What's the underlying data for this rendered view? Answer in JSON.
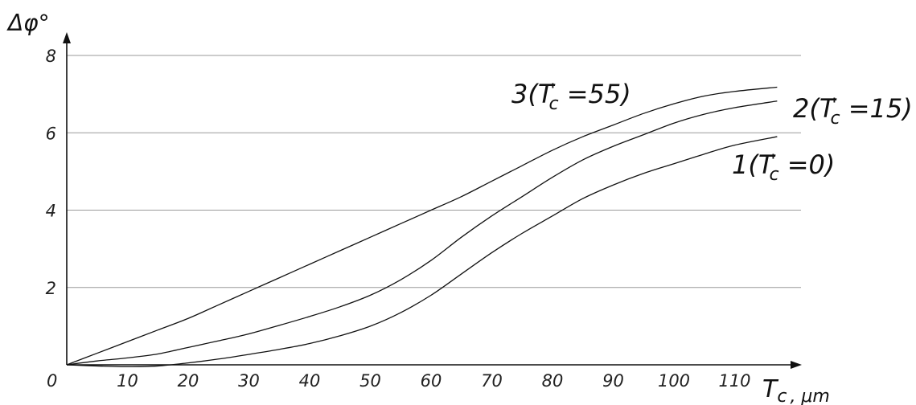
{
  "chart_data": {
    "type": "line",
    "title": "",
    "ylabel": "Δφ°",
    "xlabel": "T_c , μm",
    "xlabel_main": "T",
    "xlabel_sub": "c",
    "xlabel_unit": ", μm",
    "xlim": [
      0,
      120
    ],
    "ylim": [
      0,
      8
    ],
    "x_ticks": [
      0,
      10,
      20,
      30,
      40,
      50,
      60,
      70,
      80,
      90,
      100,
      110
    ],
    "y_ticks": [
      2,
      4,
      6,
      8
    ],
    "origin_label": "0",
    "grid": "horizontal",
    "series": [
      {
        "name": "1(T'c =0)",
        "label_parts": [
          "1(T",
          "'",
          "c",
          " =0)"
        ],
        "x": [
          0,
          5,
          10,
          15,
          20,
          25,
          30,
          35,
          40,
          45,
          50,
          55,
          60,
          65,
          70,
          75,
          80,
          85,
          90,
          95,
          100,
          105,
          110,
          117
        ],
        "y": [
          0,
          -0.03,
          -0.05,
          -0.03,
          0.05,
          0.15,
          0.27,
          0.4,
          0.55,
          0.75,
          1.0,
          1.35,
          1.8,
          2.35,
          2.9,
          3.4,
          3.85,
          4.3,
          4.65,
          4.95,
          5.2,
          5.45,
          5.68,
          5.9
        ]
      },
      {
        "name": "2(T'c =15)",
        "label_parts": [
          "2(T",
          "'",
          "c",
          " =15)"
        ],
        "x": [
          0,
          5,
          10,
          15,
          20,
          25,
          30,
          35,
          40,
          45,
          50,
          55,
          60,
          65,
          70,
          75,
          80,
          85,
          90,
          95,
          100,
          105,
          110,
          117
        ],
        "y": [
          0,
          0.1,
          0.18,
          0.28,
          0.45,
          0.62,
          0.8,
          1.02,
          1.25,
          1.5,
          1.8,
          2.2,
          2.7,
          3.3,
          3.85,
          4.35,
          4.85,
          5.3,
          5.65,
          5.95,
          6.25,
          6.48,
          6.65,
          6.82
        ]
      },
      {
        "name": "3(T'c =55)",
        "label_parts": [
          "3(T",
          "'",
          "c",
          " =55)"
        ],
        "x": [
          0,
          5,
          10,
          15,
          20,
          25,
          30,
          35,
          40,
          45,
          50,
          55,
          60,
          65,
          70,
          75,
          80,
          85,
          90,
          95,
          100,
          105,
          110,
          117
        ],
        "y": [
          0,
          0.3,
          0.6,
          0.9,
          1.2,
          1.55,
          1.9,
          2.25,
          2.6,
          2.95,
          3.3,
          3.65,
          4.0,
          4.35,
          4.75,
          5.15,
          5.55,
          5.9,
          6.2,
          6.5,
          6.75,
          6.95,
          7.07,
          7.18
        ]
      }
    ]
  }
}
